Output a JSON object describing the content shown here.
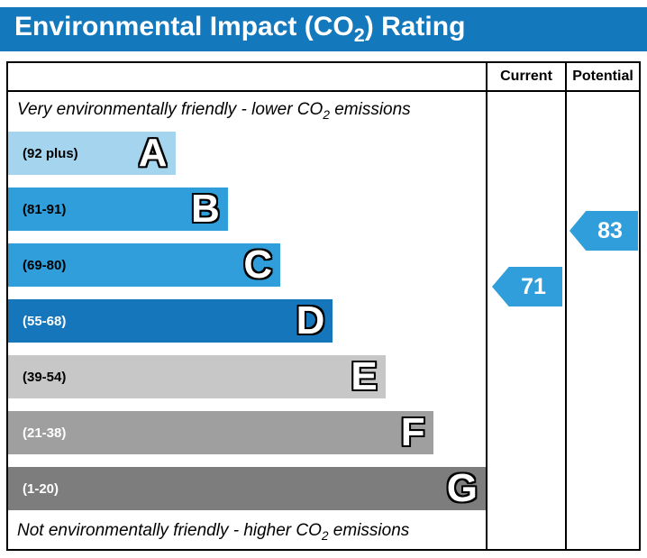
{
  "title": {
    "prefix": "Environmental Impact (CO",
    "subscript": "2",
    "suffix": ") Rating"
  },
  "header": {
    "current": "Current",
    "potential": "Potential"
  },
  "notes": {
    "top": {
      "prefix": "Very environmentally friendly - lower CO",
      "subscript": "2",
      "suffix": " emissions"
    },
    "bottom": {
      "prefix": "Not environmentally friendly - higher CO",
      "subscript": "2",
      "suffix": " emissions"
    }
  },
  "colors": {
    "title_bar": "#1478bd",
    "border": "#000000"
  },
  "chart_data": {
    "type": "bar",
    "title": "Environmental Impact (CO2) Rating",
    "categories": [
      "A",
      "B",
      "C",
      "D",
      "E",
      "F",
      "G"
    ],
    "bands": [
      {
        "letter": "A",
        "range": "(92 plus)",
        "color": "#a5d5ee",
        "width_pct": 35,
        "range_text_color": "#000000"
      },
      {
        "letter": "B",
        "range": "(81-91)",
        "color": "#2f9eda",
        "width_pct": 46,
        "range_text_color": "#000000"
      },
      {
        "letter": "C",
        "range": "(69-80)",
        "color": "#2f9eda",
        "width_pct": 57,
        "range_text_color": "#000000"
      },
      {
        "letter": "D",
        "range": "(55-68)",
        "color": "#1576bc",
        "width_pct": 68,
        "range_text_color": "#ffffff"
      },
      {
        "letter": "E",
        "range": "(39-54)",
        "color": "#c7c7c7",
        "width_pct": 79,
        "range_text_color": "#000000"
      },
      {
        "letter": "F",
        "range": "(21-38)",
        "color": "#9f9f9f",
        "width_pct": 89,
        "range_text_color": "#ffffff"
      },
      {
        "letter": "G",
        "range": "(1-20)",
        "color": "#7d7d7d",
        "width_pct": 100,
        "range_text_color": "#ffffff"
      }
    ],
    "current": {
      "value": 71,
      "band": "C",
      "color": "#2f9eda"
    },
    "potential": {
      "value": 83,
      "band": "B",
      "color": "#2f9eda"
    }
  }
}
